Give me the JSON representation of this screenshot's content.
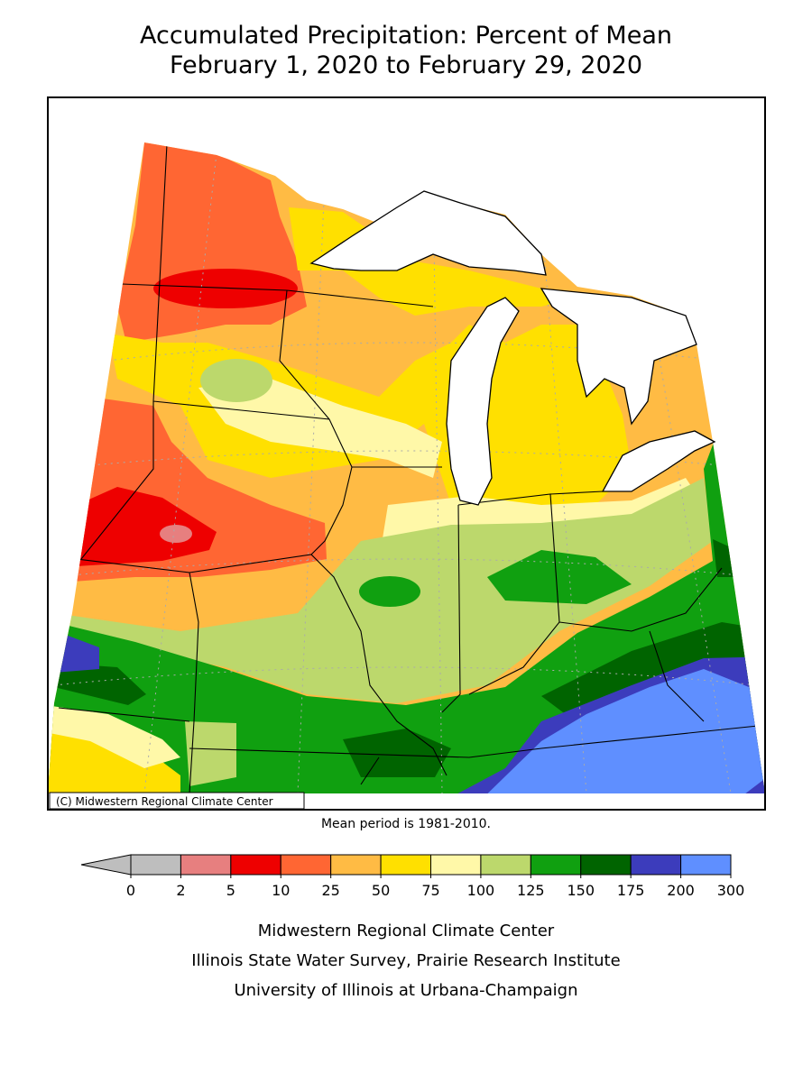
{
  "header": {
    "title": "Accumulated Precipitation: Percent of Mean",
    "subtitle": "February 1, 2020 to February 29, 2020"
  },
  "map": {
    "credit": "(C) Midwestern Regional Climate Center"
  },
  "note": "Mean period is 1981-2010.",
  "legend": {
    "breaks": [
      0,
      2,
      5,
      10,
      25,
      50,
      75,
      100,
      125,
      150,
      175,
      200,
      300
    ],
    "colors": [
      "#bebebe",
      "#e77f7f",
      "#ee0000",
      "#ff6633",
      "#ffbb44",
      "#ffe000",
      "#fff8a8",
      "#bcd86c",
      "#10a010",
      "#006400",
      "#3c3cbc",
      "#5f8fff"
    ],
    "under_color": "#bebebe"
  },
  "footer": {
    "lines": [
      "Midwestern Regional Climate Center",
      "Illinois State Water Survey, Prairie Research Institute",
      "University of Illinois at Urbana-Champaign"
    ]
  }
}
